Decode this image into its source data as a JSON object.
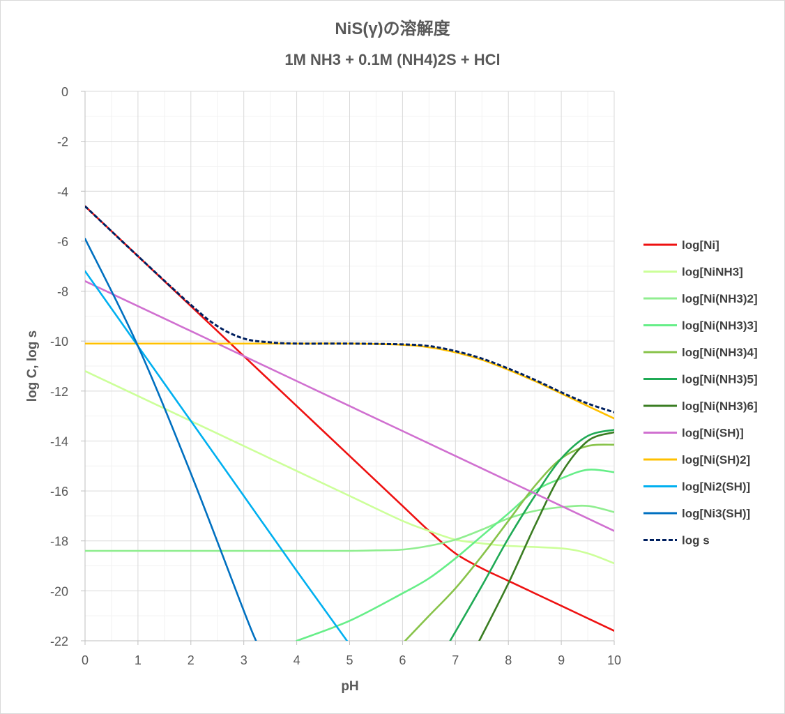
{
  "chart_data": {
    "type": "line",
    "title": "NiS(γ)の溶解度",
    "subtitle": "1M NH3 + 0.1M (NH4)2S + HCl",
    "xlabel": "pH",
    "ylabel": "log C, log s",
    "xlim": [
      0,
      10
    ],
    "ylim": [
      -22,
      0
    ],
    "xticks": [
      0,
      1,
      2,
      3,
      4,
      5,
      6,
      7,
      8,
      9,
      10
    ],
    "yticks": [
      0,
      -2,
      -4,
      -6,
      -8,
      -10,
      -12,
      -14,
      -16,
      -18,
      -20,
      -22
    ],
    "grid": true,
    "legend_position": "right",
    "series": [
      {
        "name": "log[Ni]",
        "color": "#ee1111",
        "dashed": false,
        "x": [
          0,
          1,
          2,
          3,
          4,
          5,
          6,
          6.5,
          7,
          7.5,
          8,
          9,
          10
        ],
        "y": [
          -4.6,
          -6.6,
          -8.6,
          -10.6,
          -12.6,
          -14.6,
          -16.6,
          -17.6,
          -18.5,
          -19.1,
          -19.6,
          -20.6,
          -21.6
        ]
      },
      {
        "name": "log[NiNH3]",
        "color": "#ccff99",
        "dashed": false,
        "x": [
          0,
          1,
          2,
          3,
          4,
          5,
          6,
          6.5,
          7,
          7.5,
          8,
          9,
          9.5,
          10
        ],
        "y": [
          -11.2,
          -12.2,
          -13.2,
          -14.2,
          -15.2,
          -16.2,
          -17.2,
          -17.6,
          -17.95,
          -18.1,
          -18.2,
          -18.3,
          -18.5,
          -18.9
        ]
      },
      {
        "name": "log[Ni(NH3)2]",
        "color": "#90ee90",
        "dashed": false,
        "x": [
          0,
          1,
          2,
          3,
          4,
          5,
          5.5,
          6,
          6.5,
          7,
          7.5,
          8,
          8.5,
          9,
          9.5,
          10
        ],
        "y": [
          -18.4,
          -18.4,
          -18.4,
          -18.4,
          -18.4,
          -18.4,
          -18.38,
          -18.35,
          -18.2,
          -17.95,
          -17.55,
          -17.1,
          -16.8,
          -16.65,
          -16.6,
          -16.85
        ]
      },
      {
        "name": "log[Ni(NH3)3]",
        "color": "#66ee88",
        "dashed": false,
        "x": [
          4,
          5,
          6,
          6.5,
          7,
          7.5,
          8,
          8.5,
          9,
          9.5,
          10
        ],
        "y": [
          -22.0,
          -21.2,
          -20.1,
          -19.5,
          -18.7,
          -17.8,
          -16.9,
          -16.0,
          -15.5,
          -15.15,
          -15.25
        ]
      },
      {
        "name": "log[Ni(NH3)4]",
        "color": "#88c34a",
        "dashed": false,
        "x": [
          6.05,
          6.5,
          7,
          7.5,
          8,
          8.5,
          9,
          9.5,
          10
        ],
        "y": [
          -22.0,
          -21.0,
          -19.9,
          -18.6,
          -17.2,
          -15.8,
          -14.7,
          -14.2,
          -14.15
        ]
      },
      {
        "name": "log[Ni(NH3)5]",
        "color": "#1faa55",
        "dashed": false,
        "x": [
          6.9,
          7.5,
          8,
          8.5,
          9,
          9.5,
          10
        ],
        "y": [
          -22.0,
          -19.8,
          -17.9,
          -16.2,
          -14.7,
          -13.8,
          -13.55
        ]
      },
      {
        "name": "log[Ni(NH3)6]",
        "color": "#3a7d22",
        "dashed": false,
        "x": [
          7.45,
          8,
          8.5,
          9,
          9.5,
          10
        ],
        "y": [
          -22.0,
          -19.7,
          -17.4,
          -15.3,
          -14.0,
          -13.65
        ]
      },
      {
        "name": "log[Ni(SH)]",
        "color": "#d070d0",
        "dashed": false,
        "x": [
          0,
          1,
          2,
          3,
          4,
          5,
          6,
          7,
          8,
          9,
          10
        ],
        "y": [
          -7.6,
          -8.6,
          -9.6,
          -10.6,
          -11.6,
          -12.6,
          -13.6,
          -14.6,
          -15.6,
          -16.6,
          -17.6
        ]
      },
      {
        "name": "log[Ni(SH)2]",
        "color": "#ffc000",
        "dashed": false,
        "x": [
          0,
          1,
          2,
          3,
          4,
          5,
          6,
          6.5,
          7,
          7.5,
          8,
          8.5,
          9,
          9.5,
          10
        ],
        "y": [
          -10.1,
          -10.1,
          -10.1,
          -10.1,
          -10.1,
          -10.1,
          -10.15,
          -10.25,
          -10.45,
          -10.75,
          -11.15,
          -11.6,
          -12.1,
          -12.6,
          -13.1
        ]
      },
      {
        "name": "log[Ni2(SH)]",
        "color": "#00b0f0",
        "dashed": false,
        "x": [
          0,
          1,
          2,
          3,
          4,
          4.95
        ],
        "y": [
          -7.2,
          -10.2,
          -13.2,
          -16.2,
          -19.2,
          -22.0
        ]
      },
      {
        "name": "log[Ni3(SH)]",
        "color": "#0070c0",
        "dashed": false,
        "x": [
          0,
          1,
          2,
          3,
          3.23
        ],
        "y": [
          -5.9,
          -10.2,
          -15.3,
          -20.8,
          -22.0
        ]
      },
      {
        "name": "log s",
        "color": "#002060",
        "dashed": true,
        "x": [
          0,
          1,
          2,
          2.5,
          3,
          3.5,
          4,
          5,
          6,
          6.5,
          7,
          7.5,
          8,
          8.5,
          9,
          9.5,
          10
        ],
        "y": [
          -4.6,
          -6.6,
          -8.55,
          -9.4,
          -9.9,
          -10.05,
          -10.1,
          -10.1,
          -10.13,
          -10.2,
          -10.4,
          -10.7,
          -11.1,
          -11.55,
          -12.05,
          -12.5,
          -12.85
        ]
      }
    ]
  }
}
